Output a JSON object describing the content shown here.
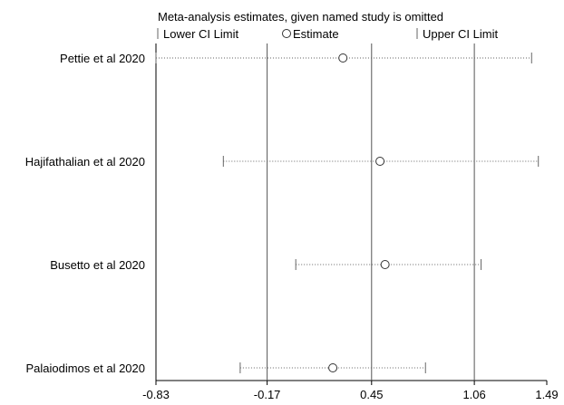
{
  "chart_data": {
    "type": "scatter",
    "title": "Meta-analysis estimates, given named study is omitted",
    "legend": {
      "placement": "top",
      "items": [
        {
          "symbol": "tick",
          "label": "Lower CI Limit"
        },
        {
          "symbol": "circle",
          "label": "Estimate"
        },
        {
          "symbol": "tick",
          "label": "Upper CI Limit"
        }
      ]
    },
    "xlim": [
      -0.83,
      1.49
    ],
    "x_ticks": [
      {
        "value": -0.83,
        "label": "-0.83"
      },
      {
        "value": -0.17,
        "label": "-0.17"
      },
      {
        "value": 0.45,
        "label": "0.45"
      },
      {
        "value": 1.06,
        "label": "1.06"
      },
      {
        "value": 1.49,
        "label": "1.49"
      }
    ],
    "reference_lines": [
      -0.17,
      0.45,
      1.06
    ],
    "studies": [
      {
        "name": "Pettie et al 2020",
        "lower": -0.83,
        "estimate": 0.28,
        "upper": 1.4
      },
      {
        "name": "Hajifathalian et al 2020",
        "lower": -0.43,
        "estimate": 0.5,
        "upper": 1.44
      },
      {
        "name": "Busetto et al 2020",
        "lower": -0.0,
        "estimate": 0.53,
        "upper": 1.1
      },
      {
        "name": "Palaiodimos et al 2020",
        "lower": -0.33,
        "estimate": 0.22,
        "upper": 0.77
      }
    ],
    "colors": {
      "axis": "#000000",
      "ref_line": "#555555",
      "ci_line": "#666666",
      "marker": "#333333"
    }
  }
}
